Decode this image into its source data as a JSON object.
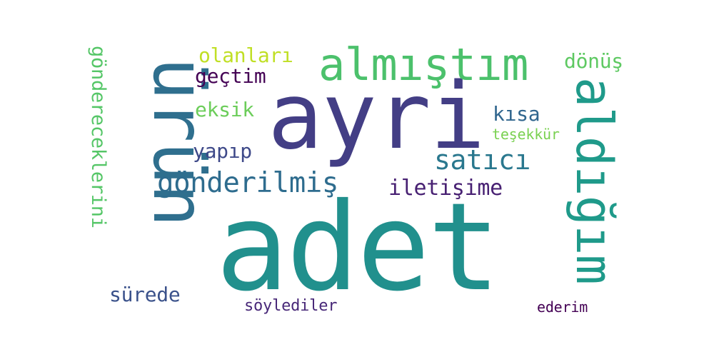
{
  "words": {
    "adet": "adet",
    "urun": "ürün",
    "ayri": "ayri",
    "almistim": "almıştım",
    "aldigim": "aldığım",
    "gonderilmis": "gönderilmiş",
    "satici": "satıcı",
    "iletisime": "iletişime",
    "gondereceklerini": "göndereceklerini",
    "olanlari": "olanları",
    "gectim": "geçtim",
    "eksik": "eksik",
    "yapip": "yapıp",
    "kisa": "kısa",
    "donus": "dönüş",
    "tesekkur": "teşekkür",
    "surede": "sürede",
    "soylediler": "söylediler",
    "ederim": "ederim"
  },
  "colors": {
    "background": "#ffffff",
    "adet": "#21908d",
    "urun": "#2f6f8e",
    "ayri": "#433e85",
    "almistim": "#4cc16c",
    "aldigim": "#1f9a8a",
    "gonderilmis": "#2e6c8e",
    "satici": "#2a788e",
    "iletisime": "#482173",
    "gondereceklerini": "#55c667",
    "olanlari": "#c0df25",
    "gectim": "#440154",
    "eksik": "#6ccd5a",
    "yapip": "#3e4989",
    "kisa": "#31668e",
    "donus": "#5ec962",
    "tesekkur": "#7ad151",
    "surede": "#3b528b",
    "soylediler": "#482878",
    "ederim": "#440154"
  }
}
